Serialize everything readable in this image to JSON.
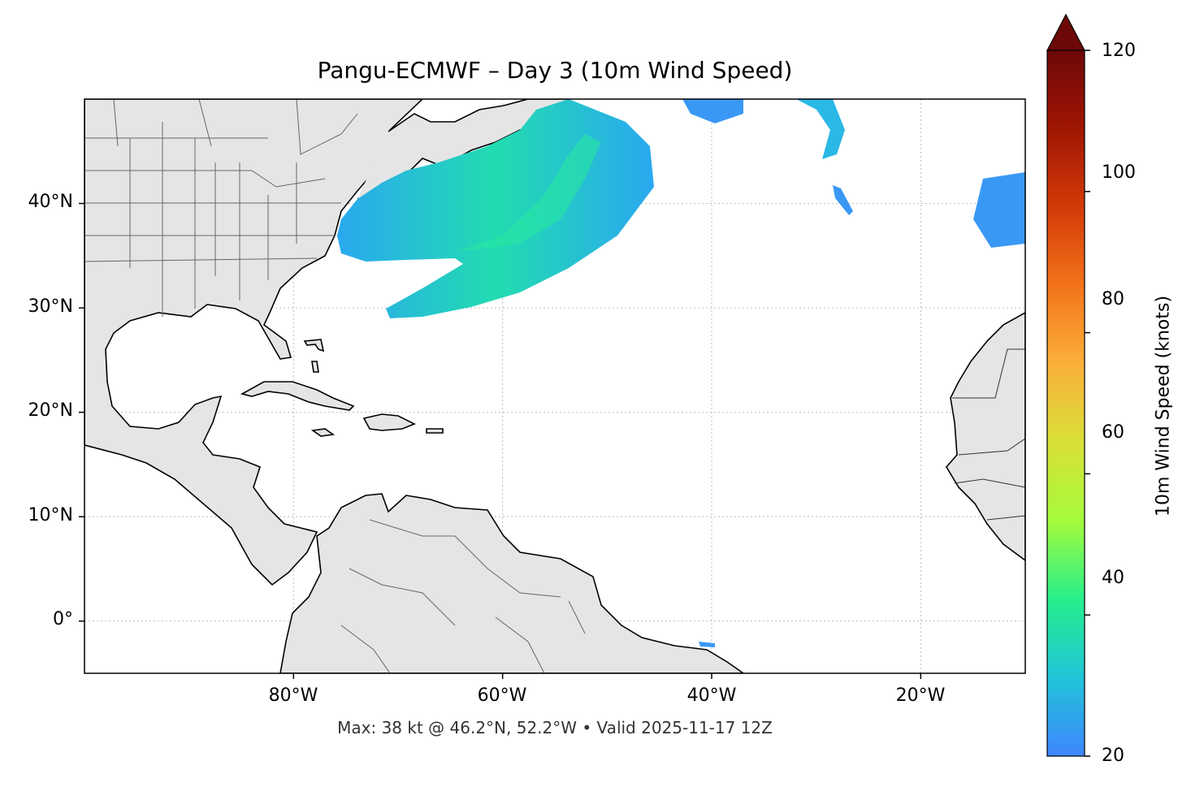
{
  "title": "Pangu-ECMWF – Day 3 (10m Wind Speed)",
  "footer": "Max: 38 kt @ 46.2°N, 52.2°W • Valid 2025-11-17 12Z",
  "map": {
    "lat_labels": [
      {
        "text": "40°N",
        "value": 40
      },
      {
        "text": "30°N",
        "value": 30
      },
      {
        "text": "20°N",
        "value": 20
      },
      {
        "text": "10°N",
        "value": 10
      },
      {
        "text": "0°",
        "value": 0
      }
    ],
    "lon_labels": [
      {
        "text": "80°W",
        "value": -80
      },
      {
        "text": "60°W",
        "value": -60
      },
      {
        "text": "40°W",
        "value": -40
      },
      {
        "text": "20°W",
        "value": -20
      }
    ],
    "extent": {
      "lon_min": -100,
      "lon_max": -10,
      "lat_min": -5,
      "lat_max": 50
    },
    "land_color": "#e5e5e5",
    "max_point": {
      "value_kt": 38,
      "lat": 46.2,
      "lon": -52.2
    }
  },
  "colorbar": {
    "label": "10m Wind Speed (knots)",
    "ticks": [
      "20",
      "40",
      "60",
      "80",
      "100",
      "120"
    ],
    "tick_values": [
      20,
      40,
      60,
      80,
      100,
      120
    ],
    "min": 20,
    "max": 120,
    "extend": "max",
    "colors": [
      "#3f86ff",
      "#20c4d8",
      "#26ef8c",
      "#a4fb3c",
      "#d9e038",
      "#fbb03a",
      "#f3731a",
      "#d23a08",
      "#a01604",
      "#6c0808"
    ]
  }
}
